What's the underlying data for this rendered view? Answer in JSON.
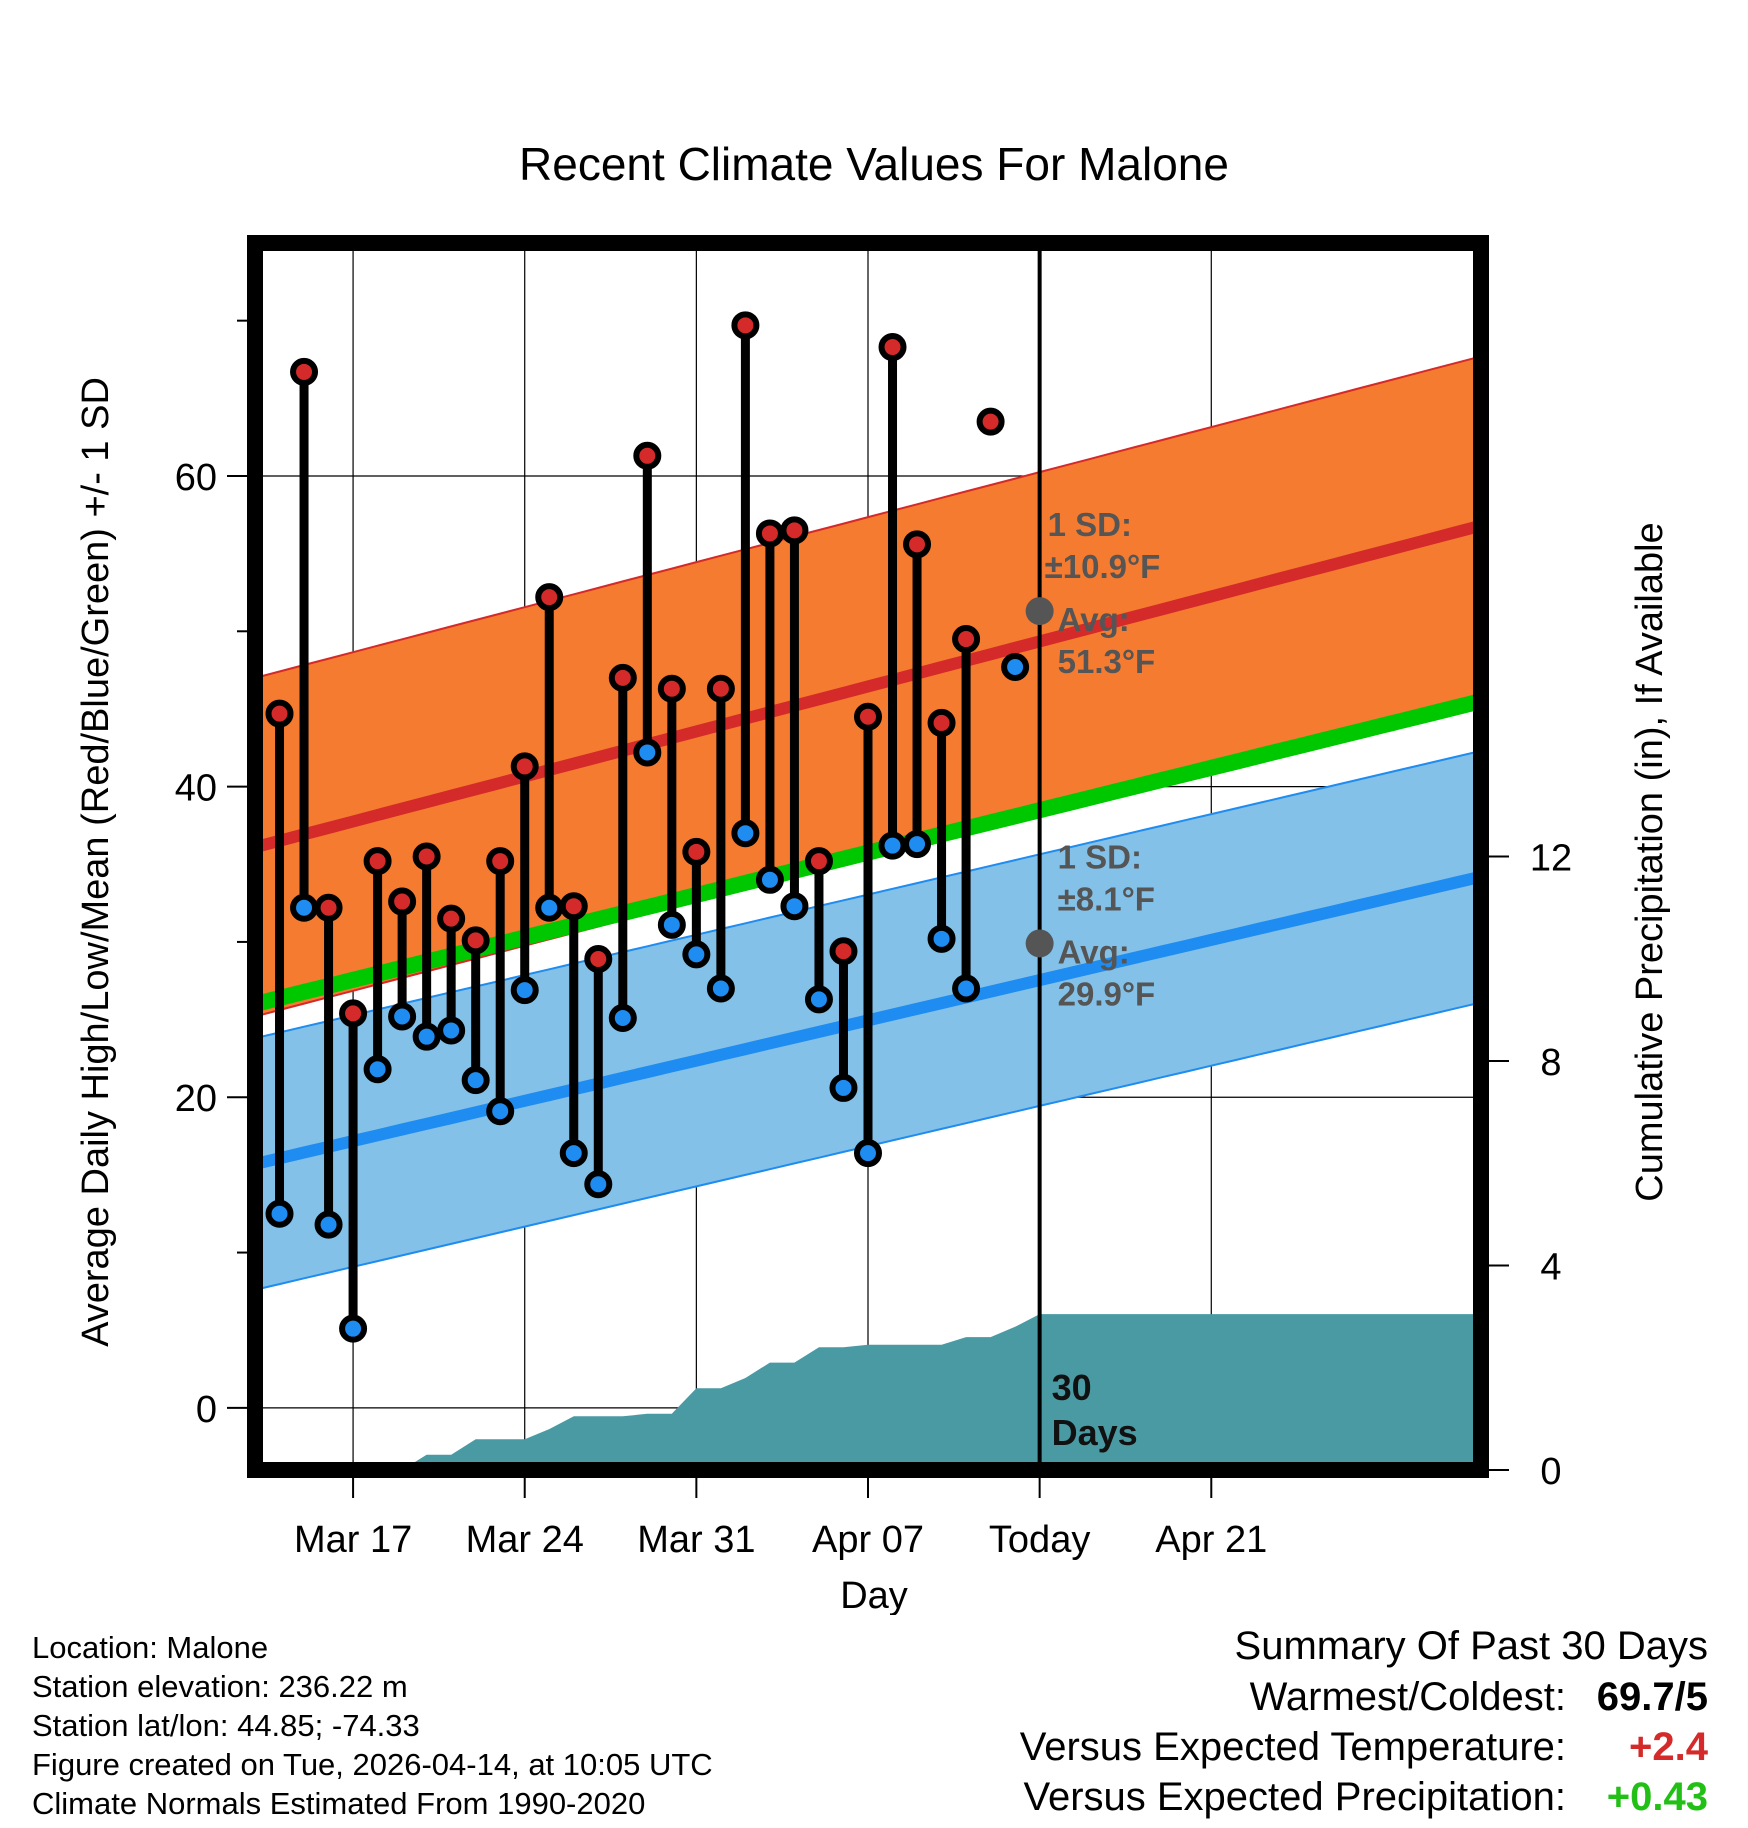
{
  "chart_data": {
    "type": "line",
    "title": "Recent Climate Values For Malone",
    "xlabel": "Day",
    "ylabel": "Average Daily High/Low/Mean (Red/Blue/Green) +/- 1 SD",
    "y2label": "Cumulative Precipitation (in), If Available",
    "ylim": [
      -4,
      75
    ],
    "y2lim": [
      0,
      24
    ],
    "yticks": [
      0,
      20,
      40,
      60
    ],
    "y2ticks": [
      0,
      4,
      8,
      12
    ],
    "xlim": [
      0,
      50
    ],
    "xticks": [
      {
        "x": 4,
        "label": "Mar 17"
      },
      {
        "x": 11,
        "label": "Mar 24"
      },
      {
        "x": 18,
        "label": "Mar 31"
      },
      {
        "x": 25,
        "label": "Apr 07"
      },
      {
        "x": 32,
        "label": "Today"
      },
      {
        "x": 39,
        "label": "Apr 21"
      }
    ],
    "today_x": 32,
    "grid": true,
    "daily": {
      "x": [
        1,
        2,
        3,
        4,
        5,
        6,
        7,
        8,
        9,
        10,
        11,
        12,
        13,
        14,
        15,
        16,
        17,
        18,
        19,
        20,
        21,
        22,
        23,
        24,
        25,
        26,
        27,
        28,
        29,
        30,
        31
      ],
      "high": [
        44.7,
        66.7,
        32.2,
        25.4,
        35.2,
        32.6,
        35.5,
        31.5,
        30.1,
        35.2,
        41.3,
        52.2,
        32.3,
        28.9,
        47.0,
        61.3,
        46.3,
        35.8,
        46.3,
        69.7,
        56.3,
        56.5,
        35.2,
        29.4,
        44.5,
        68.3,
        55.6,
        44.1,
        49.5,
        63.5,
        null
      ],
      "low": [
        12.5,
        32.2,
        11.8,
        5.1,
        21.8,
        25.2,
        23.9,
        24.3,
        21.1,
        19.1,
        26.9,
        32.2,
        16.4,
        14.4,
        25.1,
        42.2,
        31.1,
        29.2,
        27.0,
        37.0,
        34.0,
        32.3,
        26.3,
        20.6,
        16.4,
        36.2,
        36.3,
        30.2,
        27.0,
        null,
        47.7
      ]
    },
    "normal_high": {
      "x": [
        0,
        50
      ],
      "values": [
        36.1,
        56.8
      ],
      "sd": 10.9
    },
    "normal_low": {
      "x": [
        0,
        50
      ],
      "values": [
        15.7,
        34.2
      ],
      "sd": 8.1
    },
    "normal_mean": {
      "x": [
        0,
        50
      ],
      "values": [
        26.0,
        45.5
      ]
    },
    "today_avg_high": 51.3,
    "today_avg_low": 29.9,
    "precip": {
      "x": [
        0,
        4,
        5,
        6,
        7,
        8,
        9,
        10,
        11,
        12,
        13,
        14,
        15,
        16,
        17,
        18,
        19,
        20,
        21,
        22,
        23,
        24,
        25,
        26,
        27,
        28,
        29,
        30,
        31,
        32,
        50
      ],
      "values": [
        0,
        0,
        0,
        0,
        0.3,
        0.3,
        0.6,
        0.6,
        0.6,
        0.8,
        1.05,
        1.05,
        1.05,
        1.1,
        1.1,
        1.6,
        1.6,
        1.8,
        2.1,
        2.1,
        2.4,
        2.4,
        2.45,
        2.45,
        2.45,
        2.45,
        2.6,
        2.6,
        2.8,
        3.05,
        3.05
      ]
    },
    "annotations": {
      "high_sd_label": "1 SD:",
      "high_sd_value": "±10.9°F",
      "high_avg_label": "Avg:",
      "high_avg_value": "51.3°F",
      "low_sd_label": "1 SD:",
      "low_sd_value": "±8.1°F",
      "low_avg_label": "Avg:",
      "low_avg_value": "29.9°F",
      "days_line1": "30",
      "days_line2": "Days"
    },
    "colors": {
      "high_band": "#f47b30",
      "high_line": "#d42a2a",
      "low_band": "#83c1e8",
      "low_line": "#1e8cf0",
      "mean_line": "#00c800",
      "precip_fill": "#4a9aa3",
      "high_dot": "#d42a2a",
      "low_dot": "#1e8cf0",
      "annotation_text": "#555555"
    }
  },
  "info": {
    "location": "Location: Malone",
    "elevation": "Station elevation: 236.22 m",
    "latlon": "Station lat/lon: 44.85; -74.33",
    "created": "Figure created on Tue, 2026-04-14, at 10:05 UTC",
    "normals": "Climate Normals Estimated From 1990-2020"
  },
  "summary": {
    "title": "Summary Of Past 30 Days",
    "warm_cold_label": "Warmest/Coldest:",
    "warm_cold_value": "69.7/5",
    "temp_label": "Versus Expected Temperature:",
    "temp_value": "+2.4",
    "precip_label": "Versus Expected Precipitation:",
    "precip_value": "+0.43"
  }
}
